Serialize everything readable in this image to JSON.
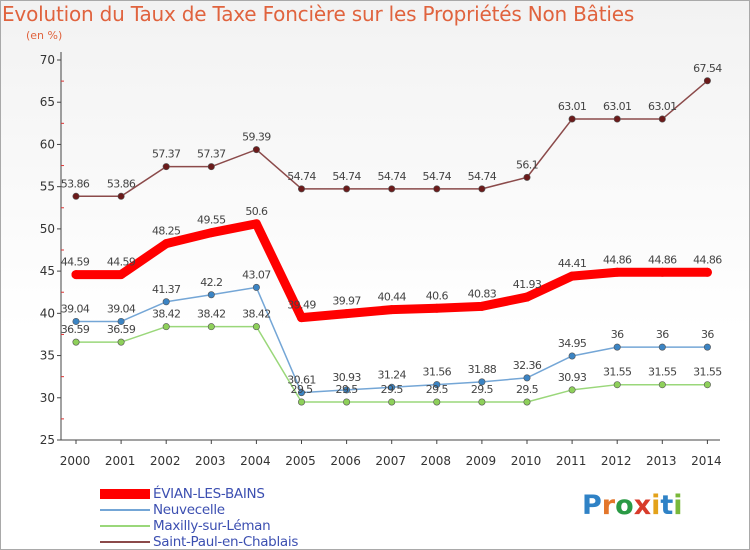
{
  "title": "Evolution du Taux de Taxe Foncière sur les Propriétés Non Bâties",
  "subtitle": "(en %)",
  "logo": {
    "letters": [
      "P",
      "r",
      "o",
      "x",
      "i",
      "t",
      "i"
    ],
    "colors": [
      "#2f82c6",
      "#e3762b",
      "#2a9a45",
      "#d83b2b",
      "#e3a21a",
      "#2f82c6",
      "#79b83a"
    ]
  },
  "chart_data": {
    "type": "line",
    "title": "Evolution du Taux de Taxe Foncière sur les Propriétés Non Bâties",
    "ylabel": "(en %)",
    "xlabel": "",
    "x": [
      "2000",
      "2001",
      "2002",
      "2003",
      "2004",
      "2005",
      "2006",
      "2007",
      "2008",
      "2009",
      "2010",
      "2011",
      "2012",
      "2013",
      "2014"
    ],
    "ylim": [
      25,
      70
    ],
    "yticks": [
      "25",
      "30",
      "35",
      "40",
      "45",
      "50",
      "55",
      "60",
      "65",
      "70"
    ],
    "grid": false,
    "series": [
      {
        "name": "ÉVIAN-LES-BAINS",
        "color": "#ff0000",
        "marker": "#ff0000",
        "width": 9,
        "values": [
          44.59,
          44.59,
          48.25,
          49.55,
          50.6,
          39.49,
          39.97,
          40.44,
          40.6,
          40.83,
          41.93,
          44.41,
          44.86,
          44.86,
          44.86
        ],
        "labels": [
          "44.59",
          "44.59",
          "48.25",
          "49.55",
          "50.6",
          "39.49",
          "39.97",
          "40.44",
          "40.6",
          "40.83",
          "41.93",
          "44.41",
          "44.86",
          "44.86",
          "44.86"
        ]
      },
      {
        "name": "Neuvecelle",
        "color": "#74a6d6",
        "marker": "#3b84c4",
        "width": 1.5,
        "values": [
          39.04,
          39.04,
          41.37,
          42.2,
          43.07,
          30.61,
          30.93,
          31.24,
          31.56,
          31.88,
          32.36,
          34.95,
          36,
          36,
          36
        ],
        "labels": [
          "39.04",
          "39.04",
          "41.37",
          "42.2",
          "43.07",
          "30.61",
          "30.93",
          "31.24",
          "31.56",
          "31.88",
          "32.36",
          "34.95",
          "36",
          "36",
          "36"
        ]
      },
      {
        "name": "Maxilly-sur-Léman",
        "color": "#9ad77a",
        "marker": "#8ed05a",
        "width": 1.5,
        "values": [
          36.59,
          36.59,
          38.42,
          38.42,
          38.42,
          29.5,
          29.5,
          29.5,
          29.5,
          29.5,
          29.5,
          30.93,
          31.55,
          31.55,
          31.55
        ],
        "labels": [
          "36.59",
          "36.59",
          "38.42",
          "38.42",
          "38.42",
          "29.5",
          "29.5",
          "29.5",
          "29.5",
          "29.5",
          "29.5",
          "30.93",
          "31.55",
          "31.55",
          "31.55"
        ]
      },
      {
        "name": "Saint-Paul-en-Chablais",
        "color": "#8b4a4a",
        "marker": "#6b1a1a",
        "width": 1.5,
        "values": [
          53.86,
          53.86,
          57.37,
          57.37,
          59.39,
          54.74,
          54.74,
          54.74,
          54.74,
          54.74,
          56.1,
          63.01,
          63.01,
          63.01,
          67.54
        ],
        "labels": [
          "53.86",
          "53.86",
          "57.37",
          "57.37",
          "59.39",
          "54.74",
          "54.74",
          "54.74",
          "54.74",
          "54.74",
          "56.1",
          "63.01",
          "63.01",
          "63.01",
          "67.54"
        ]
      }
    ]
  }
}
